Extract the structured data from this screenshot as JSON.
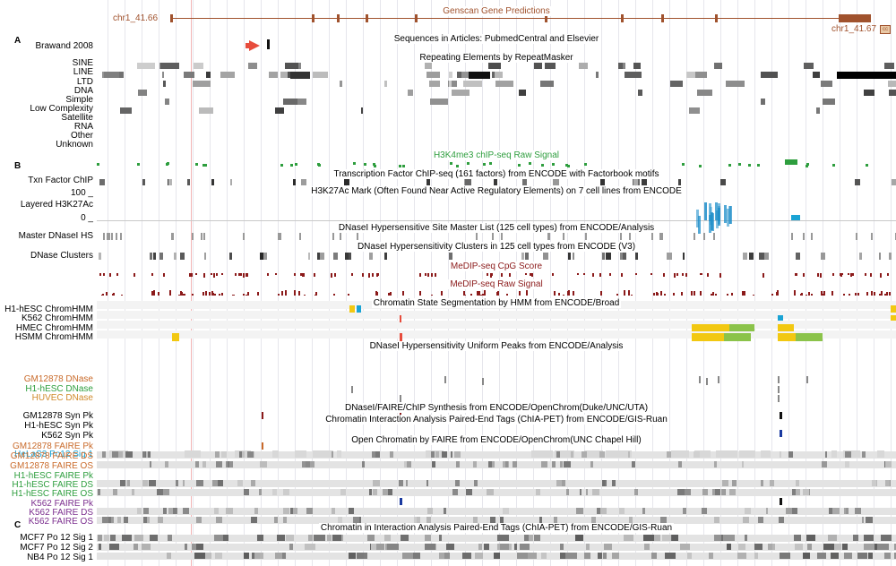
{
  "colors": {
    "genscan": "#a0522d",
    "h3k4me3": "#2e9e3e",
    "medip": "#8b1a1a",
    "gm12878": "#c96a2a",
    "h1hesc": "#2e9e3e",
    "huvec": "#d08a2c",
    "k562": "#7b2e8e",
    "helas3": "#1aa3d4",
    "arrow": "#e74c3c"
  },
  "sections": {
    "a": "A",
    "b": "B",
    "c": "C"
  },
  "coords": {
    "start": "chr1_41.66",
    "end": "chr1_41.67",
    "end_box": "cc"
  },
  "titles": {
    "genscan": "Genscan Gene Predictions",
    "pubmed": "Sequences in Articles: PubmedCentral and Elsevier",
    "repeatmasker": "Repeating Elements by RepeatMasker",
    "h3k4me3": "H3K4me3 chIP-seq Raw Signal",
    "tfchip": "Transcription Factor ChIP-seq (161 factors) from ENCODE with Factorbook motifs",
    "h3k27ac": "H3K27Ac Mark (Often Found Near Active Regulatory Elements) on 7 cell lines from ENCODE",
    "dnase_master": "DNaseI Hypersensitive Site Master List (125 cell types) from ENCODE/Analysis",
    "dnase_clusters": "DNaseI Hypersensitivity Clusters in 125 cell types from ENCODE (V3)",
    "medip_cpg": "MeDIP-seq CpG Score",
    "medip_raw": "MeDIP-seq Raw Signal",
    "chromhmm": "Chromatin State Segmentation by HMM from ENCODE/Broad",
    "dnase_uniform": "DNaseI Hypersensitivity Uniform Peaks from ENCODE/Analysis",
    "synthesis": "DNaseI/FAIRE/ChIP Synthesis from ENCODE/OpenChrom(Duke/UNC/UTA)",
    "chiapet": "Chromatin Interaction Analysis Paired-End Tags (ChIA-PET) from ENCODE/GIS-Ruan",
    "faire": "Open Chromatin by FAIRE from ENCODE/OpenChrom(UNC Chapel Hill)",
    "chiapet2": "Chromatin in Interaction Analysis Paired-End Tags (ChIA-PET) from ENCODE/GIS-Ruan"
  },
  "labels": {
    "brawand": "Brawand 2008",
    "sine": "SINE",
    "line": "LINE",
    "ltd": "LTD",
    "dna": "DNA",
    "simple": "Simple",
    "lowcomp": "Low Complexity",
    "satellite": "Satellite",
    "rna": "RNA",
    "other": "Other",
    "unknown": "Unknown",
    "txn": "Txn Factor ChIP",
    "scale_max": "100 _",
    "layered": "Layered H3K27Ac",
    "scale_min": "0 _",
    "master_dnase": "Master DNaseI HS",
    "dnase_clusters": "DNase Clusters",
    "h1_chromhmm": "H1-hESC ChromHMM",
    "k562_chromhmm": "K562 ChromHMM",
    "hmec_chromhmm": "HMEC ChromHMM",
    "hsmm_chromhmm": "HSMM ChromHMM",
    "gm12878_dnase": "GM12878 DNase",
    "h1_dnase": "H1-hESC DNase",
    "huvec_dnase": "HUVEC DNase",
    "gm12878_synpk": "GM12878 Syn Pk",
    "h1_synpk": "H1-hESC Syn Pk",
    "k562_synpk": "K562 Syn Pk",
    "helas3": "HeLaS3 Po12 Sig 1",
    "gm12878_faire_pk": "GM12878 FAIRE Pk",
    "gm12878_faire_ds": "GM12878 FAIRE DS",
    "gm12878_faire_os": "GM12878 FAIRE OS",
    "h1_faire_pk": "H1-hESC FAIRE Pk",
    "h1_faire_ds": "H1-hESC FAIRE DS",
    "h1_faire_os": "H1-hESC FAIRE OS",
    "k562_faire_pk": "K562 FAIRE Pk",
    "k562_faire_ds": "K562 FAIRE DS",
    "k562_faire_os": "K562 FAIRE OS",
    "mcf7_1": "MCF7 Po 12 Sig 1",
    "mcf7_2": "MCF7 Po 12 Sig 2",
    "nb4_1": "NB4 Po 12 Sig 1"
  }
}
